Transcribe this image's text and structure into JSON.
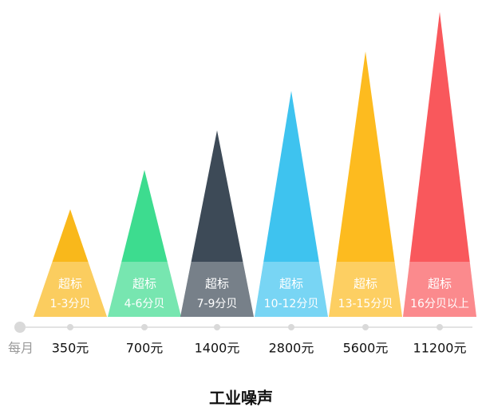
{
  "chart_data": {
    "type": "triangle",
    "title": "工业噪声",
    "x_label": "每月",
    "band_label": "超标",
    "categories": [
      "1-3分贝",
      "4-6分贝",
      "7-9分贝",
      "10-12分贝",
      "13-15分贝",
      "16分贝以上"
    ],
    "values": [
      350,
      700,
      1400,
      2800,
      5600,
      11200
    ],
    "value_labels": [
      "350元",
      "700元",
      "1400元",
      "2800元",
      "5600元",
      "11200元"
    ],
    "colors": [
      "#f9b81b",
      "#3ddc8f",
      "#3d4a57",
      "#3ec3ef",
      "#fdbb1f",
      "#f9585c"
    ],
    "ylim": [
      53,
      11200
    ],
    "log_scale": true
  }
}
